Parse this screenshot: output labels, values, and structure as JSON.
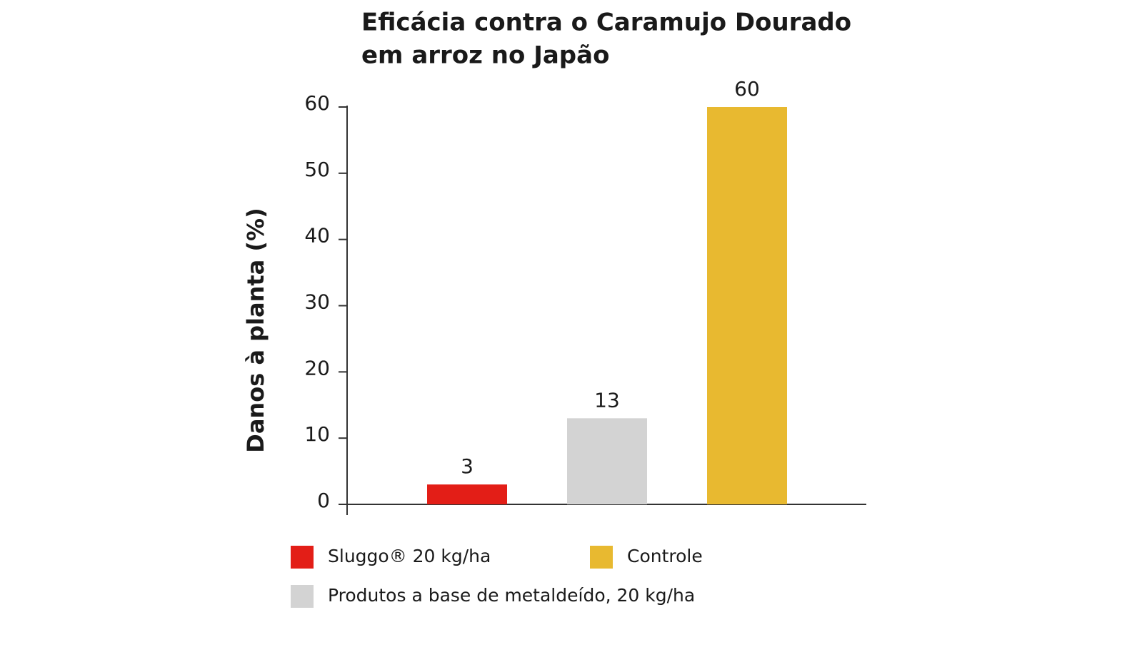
{
  "chart_data": {
    "type": "bar",
    "title": [
      "Eficácia contra o Caramujo Dourado",
      "em arroz no Japão"
    ],
    "y_label": "Danos à planta (%)",
    "series": [
      {
        "name": "Sluggo® 20 kg/ha",
        "color": "#e31e17",
        "values": [
          3
        ]
      },
      {
        "name": "Produtos a base de metaldeído, 20 kg/ha",
        "color": "#d3d3d3",
        "values": [
          13
        ]
      },
      {
        "name": "Controle",
        "color": "#e8b930",
        "values": [
          60
        ]
      }
    ],
    "ylim": [
      0,
      60
    ],
    "yticks": [
      0,
      10,
      20,
      30,
      40,
      50,
      60
    ],
    "grid": false
  }
}
